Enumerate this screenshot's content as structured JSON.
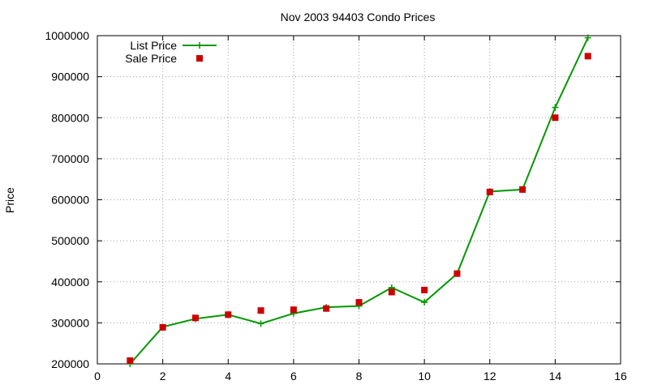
{
  "chart_data": {
    "type": "line",
    "title": "Nov 2003 94403 Condo Prices",
    "xlabel": "",
    "ylabel": "Price",
    "xlim": [
      0,
      16
    ],
    "ylim": [
      200000,
      1000000
    ],
    "xticks": [
      0,
      2,
      4,
      6,
      8,
      10,
      12,
      14,
      16
    ],
    "yticks": [
      200000,
      300000,
      400000,
      500000,
      600000,
      700000,
      800000,
      900000,
      1000000
    ],
    "grid": true,
    "legend_position": "top-left",
    "series": [
      {
        "name": "List Price",
        "style": "line-with-plus-markers",
        "color": "#009900",
        "x": [
          1,
          2,
          3,
          4,
          5,
          6,
          7,
          8,
          9,
          10,
          11,
          12,
          13,
          14,
          15
        ],
        "values": [
          200000,
          290000,
          310000,
          320000,
          298000,
          323000,
          338000,
          341000,
          386000,
          350000,
          420000,
          620000,
          625000,
          825000,
          995000
        ]
      },
      {
        "name": "Sale Price",
        "style": "square-points",
        "color": "#cc0000",
        "x": [
          1,
          2,
          3,
          4,
          5,
          6,
          7,
          8,
          9,
          10,
          11,
          12,
          13,
          14,
          15
        ],
        "values": [
          208000,
          289000,
          312000,
          320000,
          330000,
          332000,
          335000,
          350000,
          375000,
          380000,
          420000,
          619000,
          625000,
          800000,
          950000
        ]
      }
    ]
  }
}
